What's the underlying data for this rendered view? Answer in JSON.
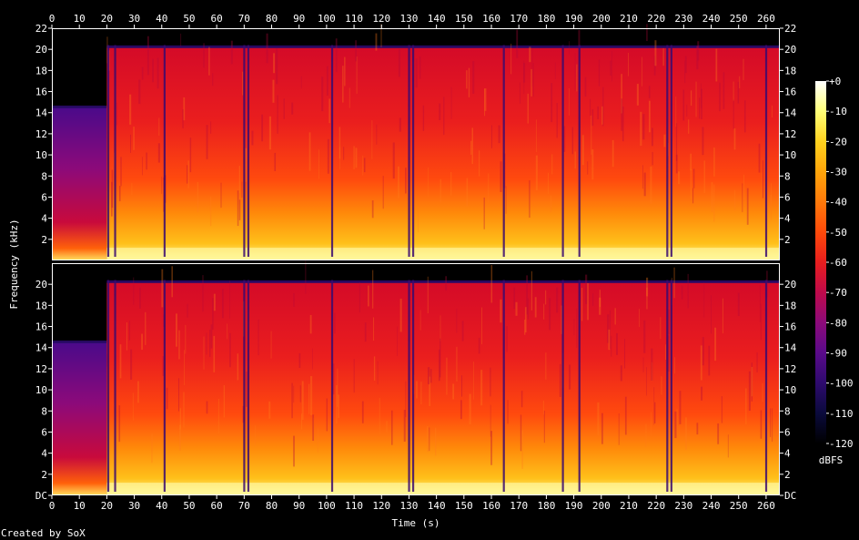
{
  "chart_data": {
    "type": "heatmap",
    "title": "",
    "xlabel": "Time (s)",
    "ylabel": "Frequency (kHz)",
    "credit": "Created by SoX",
    "xlim": [
      0,
      265
    ],
    "x_ticks": [
      0,
      10,
      20,
      30,
      40,
      50,
      60,
      70,
      80,
      90,
      100,
      110,
      120,
      130,
      140,
      150,
      160,
      170,
      180,
      190,
      200,
      210,
      220,
      230,
      240,
      250,
      260
    ],
    "ylim_khz": [
      0,
      22
    ],
    "y_ticks_top": [
      {
        "v": 2,
        "label": "2"
      },
      {
        "v": 4,
        "label": "4"
      },
      {
        "v": 6,
        "label": "6"
      },
      {
        "v": 8,
        "label": "8"
      },
      {
        "v": 10,
        "label": "10"
      },
      {
        "v": 12,
        "label": "12"
      },
      {
        "v": 14,
        "label": "14"
      },
      {
        "v": 16,
        "label": "16"
      },
      {
        "v": 18,
        "label": "18"
      },
      {
        "v": 20,
        "label": "20"
      },
      {
        "v": 22,
        "label": "22"
      }
    ],
    "y_ticks_bottom": [
      {
        "v": 0,
        "label": "DC"
      },
      {
        "v": 2,
        "label": "2"
      },
      {
        "v": 4,
        "label": "4"
      },
      {
        "v": 6,
        "label": "6"
      },
      {
        "v": 8,
        "label": "8"
      },
      {
        "v": 10,
        "label": "10"
      },
      {
        "v": 12,
        "label": "12"
      },
      {
        "v": 14,
        "label": "14"
      },
      {
        "v": 16,
        "label": "16"
      },
      {
        "v": 18,
        "label": "18"
      },
      {
        "v": 20,
        "label": "20"
      }
    ],
    "channels": 2,
    "colorbar": {
      "label": "dBFS",
      "range": [
        -120,
        0
      ],
      "ticks": [
        {
          "v": 0,
          "label": "+0"
        },
        {
          "v": -10,
          "label": "-10"
        },
        {
          "v": -20,
          "label": "-20"
        },
        {
          "v": -30,
          "label": "-30"
        },
        {
          "v": -40,
          "label": "-40"
        },
        {
          "v": -50,
          "label": "-50"
        },
        {
          "v": -60,
          "label": "-60"
        },
        {
          "v": -70,
          "label": "-70"
        },
        {
          "v": -80,
          "label": "-80"
        },
        {
          "v": -90,
          "label": "-90"
        },
        {
          "v": -100,
          "label": "-100"
        },
        {
          "v": -110,
          "label": "-110"
        },
        {
          "v": -120,
          "label": "-120"
        }
      ],
      "gradient": [
        "#000000",
        "#0a0a3c",
        "#2e0a6e",
        "#5a0a8a",
        "#8c0a7a",
        "#bf0a4a",
        "#e81e1e",
        "#ff4a0a",
        "#ff7a0a",
        "#ffa50a",
        "#ffd21e",
        "#ffff78",
        "#ffffff"
      ]
    },
    "content_cutoff_khz": [
      {
        "t0": 0,
        "t1": 20,
        "khz": 14.5
      },
      {
        "t0": 20,
        "t1": 265,
        "khz": 20.2
      }
    ],
    "quiet_gaps_s": [
      20.5,
      23,
      41,
      70,
      71.5,
      102,
      130,
      131.5,
      164.5,
      186,
      192,
      224,
      225.5,
      260
    ]
  }
}
